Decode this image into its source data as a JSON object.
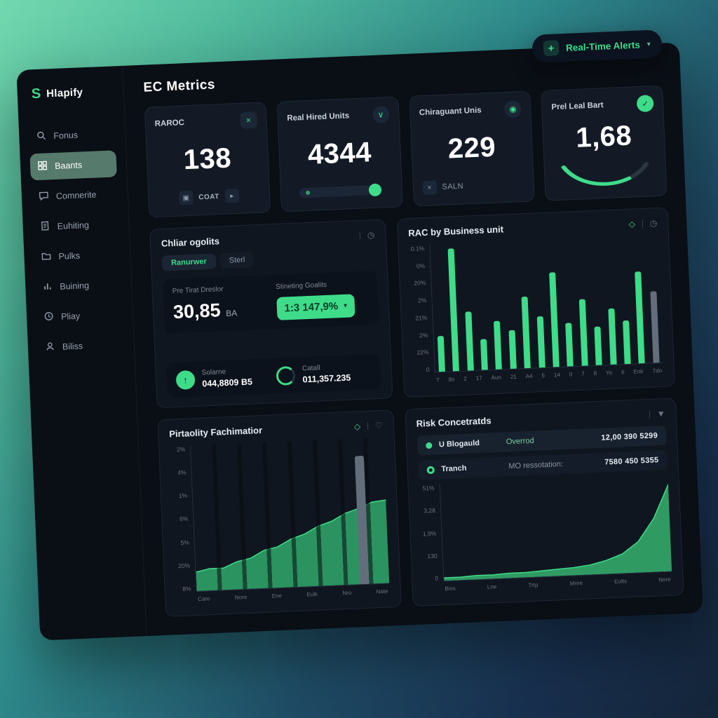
{
  "app": {
    "logo_mark": "S",
    "logo_text": "Hlapify"
  },
  "alerts_button": {
    "label": "Real-Time Alerts"
  },
  "icons": {
    "plus": "+",
    "caret_down": "▾",
    "raroc_badge": "×",
    "units_badge": "∨",
    "chira_badge": "◉",
    "check_badge": "✓",
    "coat_left": "▣",
    "coat_right": "▸",
    "saln_mark": "×",
    "diamond": "◇",
    "clock": "◷",
    "heart": "♡",
    "filter": "▼",
    "divider": "|",
    "up_arrow": "↑"
  },
  "sidebar": {
    "items": [
      {
        "label": "Fonus"
      },
      {
        "label": "Baants",
        "active": true
      },
      {
        "label": "Comnerite"
      },
      {
        "label": "Euhiting"
      },
      {
        "label": "Pulks"
      },
      {
        "label": "Buining"
      },
      {
        "label": "Pliay"
      },
      {
        "label": "Biliss"
      }
    ]
  },
  "header": {
    "title": "EC Metrics"
  },
  "kpis": [
    {
      "label": "RAROC",
      "value": "138",
      "sub": "COAT"
    },
    {
      "label": "Real Hired Units",
      "value": "4344"
    },
    {
      "label": "Chiraguant Unis",
      "value": "229",
      "sub": "SALN"
    },
    {
      "label": "Prel Leal Bart",
      "value": "1,68"
    }
  ],
  "goals_panel": {
    "title": "Chliar ogolits",
    "tabs": [
      {
        "label": "Ranurwer",
        "active": true
      },
      {
        "label": "Sterl"
      }
    ],
    "fields": [
      {
        "label": "Pre Tirat Dreslor",
        "value": "30,85",
        "unit": "BA"
      },
      {
        "label": "Stineting Goalits",
        "value": "1:3 147,9%"
      }
    ],
    "stats": [
      {
        "label": "Solarne",
        "value": "044,8809 B5"
      },
      {
        "label": "Catall",
        "value": "011,357.235"
      }
    ]
  },
  "rac_panel": {
    "title": "RAC by Business unit",
    "chart_data": {
      "type": "bar",
      "y_ticks": [
        "0.1%",
        "0%",
        "20%",
        "2%",
        "21%",
        "2%",
        "22%",
        "0"
      ],
      "x_ticks": [
        "7",
        "8o",
        "2",
        "17",
        "Aun",
        "21",
        "A4",
        "5",
        "14",
        "0",
        "7",
        "8",
        "Yo",
        "6",
        "Enlr",
        "7do"
      ],
      "values": [
        28,
        96,
        46,
        24,
        38,
        30,
        56,
        40,
        74,
        34,
        52,
        30,
        44,
        34,
        72,
        56
      ],
      "gray_last": true,
      "legend": "none",
      "grid": "off"
    }
  },
  "prob_panel": {
    "title": "Pirtaolity Fachimatior",
    "chart_data": {
      "type": "area",
      "y_ticks": [
        "2%",
        "4%",
        "1%",
        "6%",
        "5%",
        "20%",
        "8%"
      ],
      "x_ticks": [
        "Care",
        "Nore",
        "Ene",
        "Eulk",
        "Nro",
        "Nate"
      ],
      "values": [
        13,
        15,
        15,
        19,
        21,
        26,
        28,
        33,
        36,
        41,
        44,
        49,
        52,
        56,
        57
      ],
      "legend": "none",
      "grid": "off"
    }
  },
  "risk_panel": {
    "title": "Risk Concetratds",
    "rows": [
      {
        "name": "U Blogauld",
        "mid": "Overrod",
        "value": "12,00 390 5299"
      },
      {
        "name": "Tranch",
        "mid": "MO ressotation:",
        "value": "7580 450 5355"
      }
    ],
    "chart_data": {
      "type": "area",
      "y_ticks": [
        "51%",
        "3,28",
        "1,9%",
        "130",
        "0"
      ],
      "x_ticks": [
        "Bivs",
        "Lne",
        "Trtp",
        "Mnre",
        "Eolts",
        "Nore"
      ],
      "values": [
        3,
        3,
        4,
        4,
        5,
        5,
        6,
        7,
        8,
        10,
        14,
        20,
        32,
        55,
        90
      ],
      "legend": "none",
      "grid": "off"
    }
  },
  "colors": {
    "accent": "#3edc89",
    "panel_bg": "#10161f",
    "shell_bg": "#0a0e15"
  }
}
